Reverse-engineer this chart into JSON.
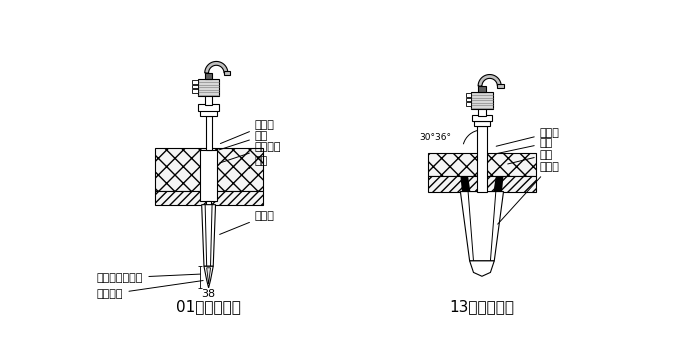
{
  "bg_color": "#ffffff",
  "line_color": "#000000",
  "title1": "01型安装示意",
  "title2": "13型安装示意",
  "labels_left": [
    "保温层",
    "焊接",
    "安装套管",
    "管壁",
    "保护管",
    "充满介质的热套",
    "卡紧牢固",
    "38"
  ],
  "labels_right": [
    "保温层",
    "焊接",
    "管壁",
    "保护管"
  ],
  "angle_label": "30°36°",
  "font_size": 8,
  "title_font_size": 11
}
